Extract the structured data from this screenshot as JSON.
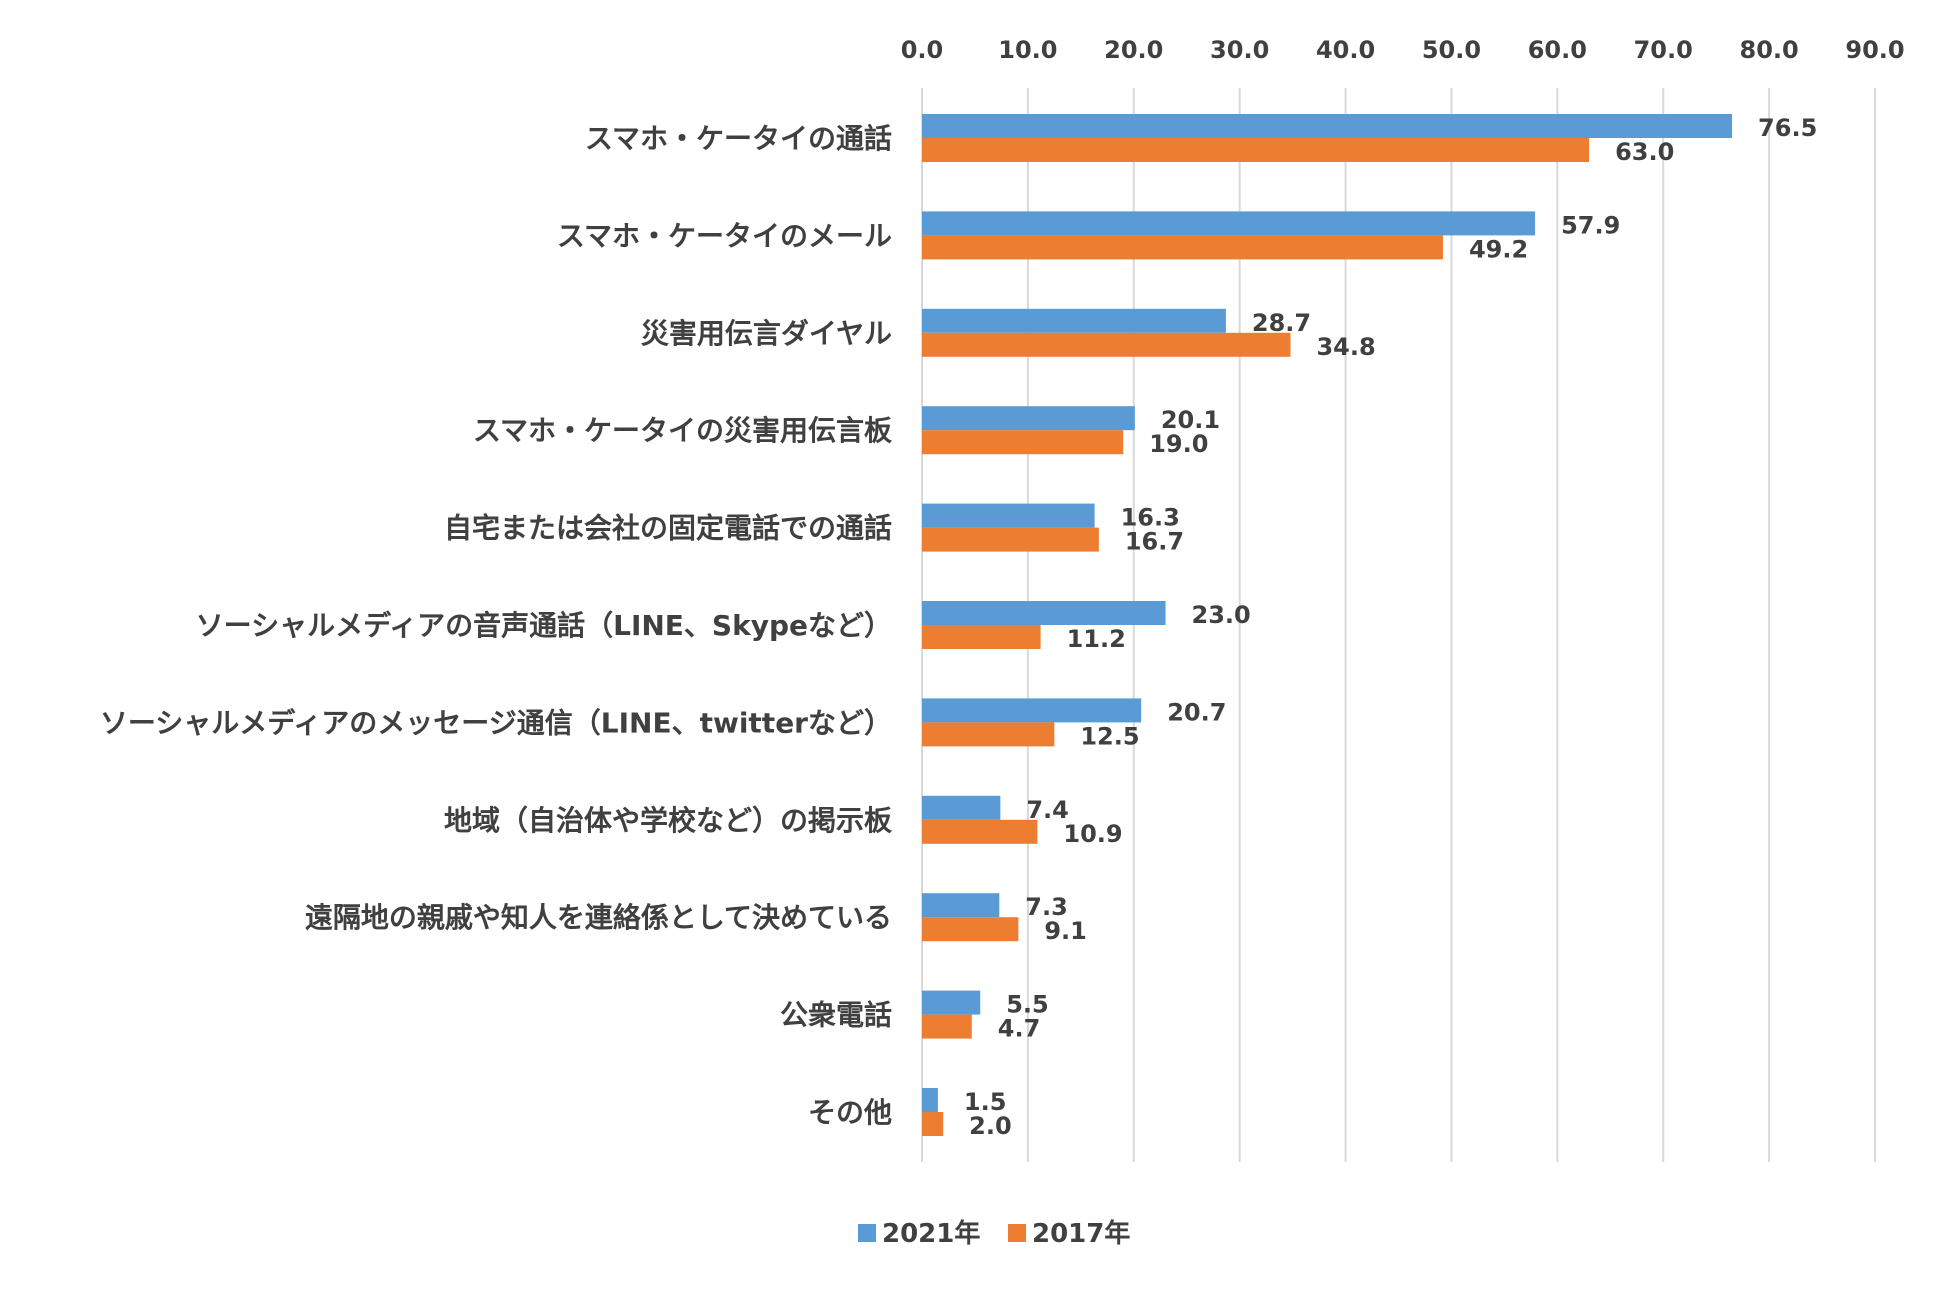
{
  "chart_data": {
    "type": "bar",
    "orientation": "horizontal",
    "title": "",
    "xlabel": "",
    "ylabel": "",
    "xlim": [
      0,
      90
    ],
    "ticks": [
      "0.0",
      "10.0",
      "20.0",
      "30.0",
      "40.0",
      "50.0",
      "60.0",
      "70.0",
      "80.0",
      "90.0"
    ],
    "tick_values": [
      0,
      10,
      20,
      30,
      40,
      50,
      60,
      70,
      80,
      90
    ],
    "x_axis_position": "top",
    "grid": true,
    "legend_position": "bottom",
    "categories": [
      "スマホ・ケータイの通話",
      "スマホ・ケータイのメール",
      "災害用伝言ダイヤル",
      "スマホ・ケータイの災害用伝言板",
      "自宅または会社の固定電話での通話",
      "ソーシャルメディアの音声通話（LINE、Skypeなど）",
      "ソーシャルメディアのメッセージ通信（LINE、twitterなど）",
      "地域（自治体や学校など）の掲示板",
      "遠隔地の親戚や知人を連絡係として決めている",
      "公衆電話",
      "その他"
    ],
    "series": [
      {
        "name": "2021年",
        "color": "#5b9bd5",
        "values": [
          76.5,
          57.9,
          28.7,
          20.1,
          16.3,
          23.0,
          20.7,
          7.4,
          7.3,
          5.5,
          1.5
        ],
        "labels": [
          "76.5",
          "57.9",
          "28.7",
          "20.1",
          "16.3",
          "23.0",
          "20.7",
          "7.4",
          "7.3",
          "5.5",
          "1.5"
        ]
      },
      {
        "name": "2017年",
        "color": "#ed7d31",
        "values": [
          63.0,
          49.2,
          34.8,
          19.0,
          16.7,
          11.2,
          12.5,
          10.9,
          9.1,
          4.7,
          2.0
        ],
        "labels": [
          "63.0",
          "49.2",
          "34.8",
          "19.0",
          "16.7",
          "11.2",
          "12.5",
          "10.9",
          "9.1",
          "4.7",
          "2.0"
        ]
      }
    ]
  }
}
